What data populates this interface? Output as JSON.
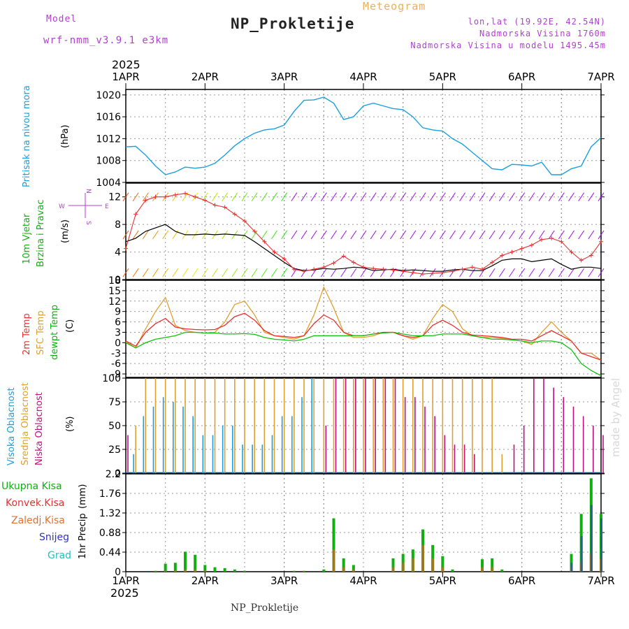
{
  "header": {
    "model_label": "Model",
    "model_name": "wrf-nmm_v3.9.1 e3km",
    "title": "NP_Prokletije",
    "meteogram": "Meteogram",
    "lonlat": "lon,lat (19.92E, 42.54N)",
    "altitude": "Nadmorska Visina 1760m",
    "model_altitude": "Nadmorska Visina u modelu 1495.45m",
    "footer": "NP_Prokletije",
    "credit": "made by Angel",
    "year_top": "2025",
    "year_bottom": "2025"
  },
  "colors": {
    "pressure": "#1aa0e0",
    "wind_speed": "#000000",
    "gust": "#e83030",
    "t2m": "#e83030",
    "sfc": "#e0a030",
    "dewpt": "#10c010",
    "high_cloud": "#1aa0e0",
    "mid_cloud": "#e0a030",
    "low_cloud": "#c01080",
    "total_precip": "#10b010",
    "conv": "#e83030",
    "frozen": "#e07030",
    "snow": "#3030d0",
    "grad": "#20c0c0",
    "axis_text": "#000000"
  },
  "chart_data": [
    {
      "type": "line",
      "name": "pressure",
      "ylabel": "Pritisak na nivou mora",
      "unit": "(hPa)",
      "ylim": [
        1004,
        1021
      ],
      "yticks": [
        1004,
        1008,
        1012,
        1016,
        1020
      ],
      "x": [
        0,
        3,
        6,
        9,
        12,
        15,
        18,
        21,
        24,
        27,
        30,
        33,
        36,
        39,
        42,
        45,
        48,
        51,
        54,
        57,
        60,
        63,
        66,
        69,
        72,
        75,
        78,
        81,
        84,
        87,
        90,
        93,
        96,
        99,
        102,
        105,
        108,
        111,
        114,
        117,
        120,
        123,
        126,
        129,
        132,
        135,
        138,
        141,
        144
      ],
      "values": [
        1010.5,
        1010.6,
        1009.0,
        1007.0,
        1005.4,
        1005.9,
        1006.8,
        1006.6,
        1006.8,
        1007.5,
        1009.0,
        1010.7,
        1012.0,
        1013.0,
        1013.6,
        1013.8,
        1014.5,
        1017.0,
        1019.0,
        1019.1,
        1019.6,
        1018.5,
        1015.5,
        1016.0,
        1018.0,
        1018.5,
        1018.0,
        1017.5,
        1017.3,
        1016.0,
        1014.0,
        1013.6,
        1013.4,
        1012.0,
        1011.0,
        1009.5,
        1008.0,
        1006.5,
        1006.3,
        1007.3,
        1007.2,
        1007.0,
        1007.7,
        1005.4,
        1005.4,
        1006.5,
        1007.0,
        1010.5,
        1012.2
      ]
    },
    {
      "type": "line",
      "name": "wind",
      "ylabel": "10m Vjetar Brzina i Pravac",
      "unit": "(m/s)",
      "ylim": [
        0,
        14
      ],
      "yticks": [
        0,
        4,
        8,
        12
      ],
      "direction_legend": [
        "N",
        "S",
        "E",
        "W"
      ],
      "x": [
        0,
        3,
        6,
        9,
        12,
        15,
        18,
        21,
        24,
        27,
        30,
        33,
        36,
        39,
        42,
        45,
        48,
        51,
        54,
        57,
        60,
        63,
        66,
        69,
        72,
        75,
        78,
        81,
        84,
        87,
        90,
        93,
        96,
        99,
        102,
        105,
        108,
        111,
        114,
        117,
        120,
        123,
        126,
        129,
        132,
        135,
        138,
        141,
        144
      ],
      "series": [
        {
          "name": "speed",
          "values": [
            5.5,
            6.0,
            7.0,
            7.5,
            8.0,
            7.0,
            6.5,
            6.5,
            6.6,
            6.5,
            6.6,
            6.5,
            6.4,
            5.5,
            4.5,
            3.5,
            2.5,
            1.6,
            1.3,
            1.4,
            1.6,
            1.5,
            1.6,
            1.8,
            1.7,
            1.3,
            1.4,
            1.5,
            1.3,
            1.4,
            1.3,
            1.2,
            1.2,
            1.4,
            1.5,
            1.3,
            1.3,
            2.0,
            2.8,
            3.0,
            3.0,
            2.6,
            2.8,
            3.0,
            2.2,
            1.5,
            1.8,
            1.8,
            1.6
          ]
        },
        {
          "name": "gust",
          "values": [
            4.5,
            9.5,
            11.5,
            12.0,
            12.0,
            12.3,
            12.5,
            12.0,
            11.5,
            10.8,
            10.5,
            9.5,
            8.5,
            7.0,
            5.5,
            4.0,
            3.0,
            1.5,
            1.2,
            1.5,
            1.8,
            2.4,
            3.4,
            2.5,
            1.8,
            1.6,
            1.5,
            1.4,
            1.2,
            1.0,
            0.8,
            0.9,
            1.0,
            1.2,
            1.5,
            1.8,
            1.5,
            2.5,
            3.5,
            4.0,
            4.5,
            5.0,
            5.8,
            6.0,
            5.5,
            4.0,
            2.8,
            3.5,
            5.5
          ]
        }
      ]
    },
    {
      "type": "line",
      "name": "temperature",
      "ylabel": [
        "2m Temp",
        "SFC Temp",
        "dewpt Temp"
      ],
      "unit": "(C)",
      "ylim": [
        -10,
        18
      ],
      "yticks": [
        -9,
        -6,
        -3,
        0,
        3,
        6,
        9,
        12,
        15,
        18
      ],
      "x": [
        0,
        3,
        6,
        9,
        12,
        15,
        18,
        21,
        24,
        27,
        30,
        33,
        36,
        39,
        42,
        45,
        48,
        51,
        54,
        57,
        60,
        63,
        66,
        69,
        72,
        75,
        78,
        81,
        84,
        87,
        90,
        93,
        96,
        99,
        102,
        105,
        108,
        111,
        114,
        117,
        120,
        123,
        126,
        129,
        132,
        135,
        138,
        141,
        144
      ],
      "series": [
        {
          "name": "t2m",
          "values": [
            0.5,
            -1,
            3,
            5.5,
            7,
            4.5,
            4,
            3.8,
            3.7,
            3.8,
            5,
            7.5,
            8.5,
            6.5,
            3.5,
            2,
            1.8,
            1.5,
            2,
            5.5,
            8,
            6.5,
            3,
            2,
            2,
            2.5,
            3,
            3,
            2,
            1.5,
            2,
            5,
            6.5,
            5,
            3,
            2.2,
            2,
            1.8,
            1.5,
            1,
            1,
            0.5,
            2,
            3.5,
            2,
            0.5,
            -3,
            -4,
            -5
          ]
        },
        {
          "name": "sfc",
          "values": [
            0.3,
            -1.5,
            4,
            9,
            13,
            5,
            3.5,
            3,
            2.8,
            3,
            6,
            11,
            12,
            8,
            3,
            2,
            1.5,
            1,
            2,
            8,
            16,
            10,
            3,
            1.5,
            1.5,
            2,
            3,
            3,
            2,
            1,
            2,
            7,
            11,
            9,
            4,
            2,
            1.5,
            1.5,
            1.2,
            0.8,
            0.5,
            -0.5,
            3,
            6,
            3,
            0.5,
            -3,
            -3,
            -5
          ]
        },
        {
          "name": "dewpt",
          "values": [
            0,
            -1.5,
            0,
            1,
            1.5,
            2,
            3,
            3,
            2.8,
            2.8,
            2.5,
            2.5,
            2.6,
            2.4,
            1.5,
            1,
            0.8,
            0.5,
            1,
            2,
            2,
            2,
            2,
            2,
            2,
            2.5,
            2.8,
            3,
            2.5,
            2,
            2,
            2,
            2.5,
            2.5,
            2.5,
            2,
            1.5,
            1,
            1,
            0.8,
            0.5,
            0,
            0.5,
            0.5,
            0,
            -2,
            -6,
            -8,
            -9.5
          ]
        }
      ]
    },
    {
      "type": "bar",
      "name": "cloudiness",
      "ylabel": [
        "Visoka Oblacnost",
        "Srednja Oblacnost",
        "Niska Oblacnost"
      ],
      "unit": "(%)",
      "ylim": [
        0,
        100
      ],
      "yticks": [
        0,
        25,
        50,
        75,
        100
      ],
      "x": [
        0,
        3,
        6,
        9,
        12,
        15,
        18,
        21,
        24,
        27,
        30,
        33,
        36,
        39,
        42,
        45,
        48,
        51,
        54,
        57,
        60,
        63,
        66,
        69,
        72,
        75,
        78,
        81,
        84,
        87,
        90,
        93,
        96,
        99,
        102,
        105,
        108,
        111,
        114,
        117,
        120,
        123,
        126,
        129,
        132,
        135,
        138,
        141,
        144
      ],
      "series": [
        {
          "name": "high",
          "values": [
            0,
            20,
            60,
            70,
            80,
            75,
            70,
            60,
            40,
            40,
            50,
            50,
            30,
            30,
            30,
            40,
            60,
            60,
            80,
            100,
            0,
            0,
            0,
            0,
            0,
            0,
            0,
            0,
            0,
            0,
            0,
            0,
            0,
            0,
            0,
            0,
            0,
            0,
            0,
            0,
            0,
            0,
            0,
            0,
            0,
            0,
            0,
            0,
            0
          ]
        },
        {
          "name": "mid",
          "values": [
            0,
            50,
            100,
            100,
            100,
            100,
            100,
            100,
            100,
            100,
            100,
            100,
            100,
            100,
            100,
            100,
            100,
            100,
            100,
            100,
            100,
            100,
            100,
            100,
            100,
            100,
            100,
            100,
            100,
            100,
            100,
            100,
            100,
            100,
            100,
            100,
            100,
            100,
            20,
            0,
            0,
            0,
            0,
            0,
            0,
            0,
            0,
            0,
            0
          ]
        },
        {
          "name": "low",
          "values": [
            40,
            0,
            0,
            0,
            0,
            0,
            0,
            0,
            0,
            0,
            0,
            0,
            0,
            0,
            0,
            0,
            0,
            0,
            0,
            0,
            50,
            100,
            100,
            100,
            100,
            100,
            100,
            100,
            80,
            80,
            70,
            60,
            40,
            30,
            30,
            20,
            0,
            0,
            0,
            30,
            50,
            100,
            100,
            90,
            80,
            70,
            60,
            50,
            40
          ]
        }
      ]
    },
    {
      "type": "bar",
      "name": "precipitation",
      "ylabel": "1hr Precip",
      "unit": "(mm)",
      "legend": [
        "Ukupna Kisa",
        "Konvek.Kisa",
        "Zaledj.Kisa",
        "Snijeg",
        "Grad"
      ],
      "ylim": [
        0,
        2.2
      ],
      "yticks": [
        0,
        0.44,
        0.88,
        1.32,
        1.76,
        2.2
      ],
      "x": [
        0,
        3,
        6,
        9,
        12,
        15,
        18,
        21,
        24,
        27,
        30,
        33,
        36,
        39,
        42,
        45,
        48,
        51,
        54,
        57,
        60,
        63,
        66,
        69,
        72,
        75,
        78,
        81,
        84,
        87,
        90,
        93,
        96,
        99,
        102,
        105,
        108,
        111,
        114,
        117,
        120,
        123,
        126,
        129,
        132,
        135,
        138,
        141,
        144
      ],
      "series": [
        {
          "name": "total",
          "values": [
            0,
            0,
            0,
            0.02,
            0.18,
            0.2,
            0.45,
            0.38,
            0.15,
            0.1,
            0.08,
            0.05,
            0.02,
            0,
            0,
            0,
            0,
            0.02,
            0.02,
            0,
            0.05,
            1.2,
            0.3,
            0.15,
            0,
            0,
            0,
            0.3,
            0.4,
            0.5,
            0.95,
            0.6,
            0.35,
            0.05,
            0,
            0,
            0.28,
            0.3,
            0.05,
            0,
            0,
            0,
            0,
            0,
            0,
            0.4,
            1.3,
            2.1,
            1.3
          ]
        },
        {
          "name": "convective",
          "values": [
            0,
            0,
            0,
            0,
            0.02,
            0.02,
            0.05,
            0.05,
            0.02,
            0,
            0,
            0,
            0,
            0,
            0,
            0,
            0,
            0,
            0,
            0,
            0,
            0.5,
            0.1,
            0.05,
            0,
            0,
            0,
            0.1,
            0.2,
            0.3,
            0.6,
            0.3,
            0.1,
            0,
            0,
            0,
            0.1,
            0.1,
            0,
            0,
            0,
            0,
            0,
            0,
            0,
            0.1,
            0.2,
            0.4,
            0.3
          ]
        },
        {
          "name": "snow",
          "values": [
            0,
            0,
            0,
            0,
            0,
            0,
            0,
            0,
            0,
            0,
            0,
            0,
            0,
            0,
            0,
            0,
            0,
            0,
            0,
            0,
            0,
            0,
            0,
            0,
            0,
            0,
            0,
            0,
            0,
            0,
            0,
            0,
            0,
            0,
            0,
            0,
            0,
            0,
            0,
            0,
            0,
            0,
            0,
            0,
            0,
            0.2,
            0.8,
            1.5,
            1.2
          ]
        }
      ]
    }
  ],
  "time_axis": {
    "labels": [
      "1APR",
      "2APR",
      "3APR",
      "4APR",
      "5APR",
      "6APR",
      "7APR"
    ],
    "hours": [
      0,
      24,
      48,
      72,
      96,
      120,
      144
    ]
  }
}
